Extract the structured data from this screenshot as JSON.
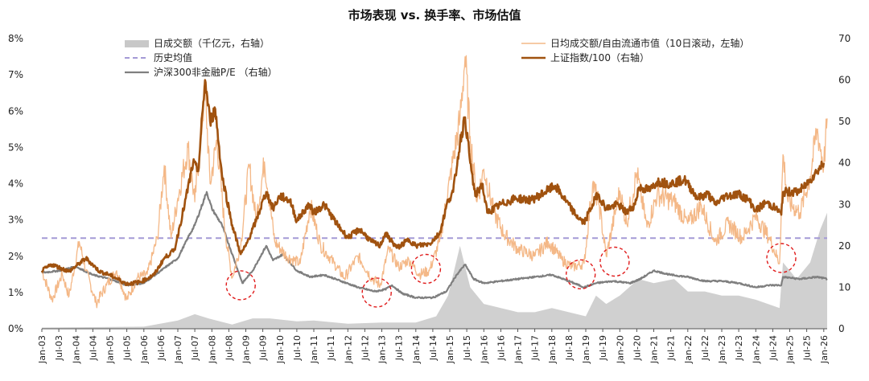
{
  "chart_data": {
    "type": "line",
    "title": "市场表现 vs. 换手率、市场估值",
    "left_axis": {
      "ylim": [
        0,
        8
      ],
      "ticks": [
        "0%",
        "1%",
        "2%",
        "3%",
        "4%",
        "5%",
        "6%",
        "7%",
        "8%"
      ]
    },
    "right_axis": {
      "ylim": [
        0,
        70
      ],
      "ticks": [
        "0",
        "10",
        "20",
        "30",
        "40",
        "50",
        "60",
        "70"
      ]
    },
    "x_ticks": [
      "Jan-03",
      "Jul-03",
      "Jan-04",
      "Jul-04",
      "Jan-05",
      "Jul-05",
      "Jan-06",
      "Jul-06",
      "Jan-07",
      "Jul-07",
      "Jan-08",
      "Jul-08",
      "Jan-09",
      "Jul-09",
      "Jan-10",
      "Jul-10",
      "Jan-11",
      "Jul-11",
      "Jan-12",
      "Jul-12",
      "Jan-13",
      "Jul-13",
      "Jan-14",
      "Jul-14",
      "Jan-15",
      "Jul-15",
      "Jan-16",
      "Jul-16",
      "Jan-17",
      "Jul-17",
      "Jan-18",
      "Jul-18",
      "Jan-19",
      "Jul-19",
      "Jan-20",
      "Jul-20",
      "Jan-21",
      "Jul-21",
      "Jan-22",
      "Jul-22",
      "Jan-23",
      "Jul-23",
      "Jan-24",
      "Jul-24",
      "Jan-25",
      "Jul-25",
      "Jan-26"
    ],
    "legend": [
      {
        "key": "volume",
        "label": "日成交额（千亿元，右轴）",
        "color": "#c8c8c8",
        "style": "area"
      },
      {
        "key": "mean",
        "label": "历史均值",
        "color": "#a49ad6",
        "style": "dashed"
      },
      {
        "key": "pe",
        "label": "沪深300非金融P/E （右轴）",
        "color": "#7f7f7f",
        "style": "line"
      },
      {
        "key": "turnover",
        "label": "日均成交额/自由流通市值（10日滚动，左轴）",
        "color": "#f4b887",
        "style": "line"
      },
      {
        "key": "sh",
        "label": "上证指数/100（右轴）",
        "color": "#a0520f",
        "style": "line"
      }
    ],
    "historical_mean_pct": 2.5,
    "series": [
      {
        "key": "sh",
        "axis": "right",
        "points": [
          [
            2003.0,
            14
          ],
          [
            2003.3,
            15.5
          ],
          [
            2003.8,
            13.8
          ],
          [
            2004.3,
            17
          ],
          [
            2004.7,
            13.8
          ],
          [
            2005.0,
            13
          ],
          [
            2005.5,
            10.8
          ],
          [
            2005.9,
            11.3
          ],
          [
            2006.3,
            13
          ],
          [
            2006.6,
            17
          ],
          [
            2006.9,
            19
          ],
          [
            2007.2,
            30
          ],
          [
            2007.45,
            40
          ],
          [
            2007.6,
            38
          ],
          [
            2007.8,
            60
          ],
          [
            2007.95,
            50
          ],
          [
            2008.1,
            53
          ],
          [
            2008.3,
            37
          ],
          [
            2008.6,
            25
          ],
          [
            2008.85,
            18
          ],
          [
            2009.0,
            20
          ],
          [
            2009.3,
            26
          ],
          [
            2009.6,
            33
          ],
          [
            2009.8,
            29
          ],
          [
            2010.0,
            32
          ],
          [
            2010.3,
            31
          ],
          [
            2010.5,
            26
          ],
          [
            2010.85,
            30
          ],
          [
            2011.0,
            28
          ],
          [
            2011.3,
            30
          ],
          [
            2011.7,
            25
          ],
          [
            2012.0,
            22
          ],
          [
            2012.35,
            24
          ],
          [
            2012.7,
            21
          ],
          [
            2012.95,
            20
          ],
          [
            2013.1,
            23
          ],
          [
            2013.45,
            19.5
          ],
          [
            2013.8,
            21.5
          ],
          [
            2014.0,
            20
          ],
          [
            2014.4,
            20.5
          ],
          [
            2014.7,
            23
          ],
          [
            2014.95,
            31
          ],
          [
            2015.1,
            33
          ],
          [
            2015.3,
            45
          ],
          [
            2015.45,
            51
          ],
          [
            2015.6,
            40
          ],
          [
            2015.75,
            32
          ],
          [
            2015.95,
            35
          ],
          [
            2016.1,
            28
          ],
          [
            2016.5,
            30
          ],
          [
            2016.95,
            31.5
          ],
          [
            2017.4,
            31
          ],
          [
            2017.9,
            33.5
          ],
          [
            2018.1,
            34.5
          ],
          [
            2018.4,
            31
          ],
          [
            2018.7,
            27.5
          ],
          [
            2018.95,
            25.5
          ],
          [
            2019.2,
            30
          ],
          [
            2019.35,
            32.5
          ],
          [
            2019.6,
            29
          ],
          [
            2019.95,
            30
          ],
          [
            2020.2,
            28
          ],
          [
            2020.45,
            30
          ],
          [
            2020.55,
            34
          ],
          [
            2020.9,
            33.5
          ],
          [
            2021.1,
            35.5
          ],
          [
            2021.5,
            35
          ],
          [
            2021.9,
            36
          ],
          [
            2022.3,
            31.5
          ],
          [
            2022.6,
            32.5
          ],
          [
            2022.8,
            30
          ],
          [
            2023.1,
            32
          ],
          [
            2023.5,
            32.5
          ],
          [
            2023.8,
            31
          ],
          [
            2024.0,
            28.5
          ],
          [
            2024.3,
            30.5
          ],
          [
            2024.6,
            29
          ],
          [
            2024.75,
            27.5
          ],
          [
            2024.8,
            33
          ],
          [
            2025.2,
            33
          ],
          [
            2025.4,
            34
          ],
          [
            2025.6,
            36
          ],
          [
            2025.8,
            38
          ],
          [
            2026.0,
            40
          ]
        ]
      },
      {
        "key": "pe",
        "axis": "right",
        "points": [
          [
            2003.0,
            13.5
          ],
          [
            2003.5,
            14
          ],
          [
            2004.0,
            15
          ],
          [
            2004.5,
            13
          ],
          [
            2005.0,
            12
          ],
          [
            2005.5,
            10.5
          ],
          [
            2006.0,
            11
          ],
          [
            2006.5,
            14
          ],
          [
            2007.0,
            17
          ],
          [
            2007.3,
            22
          ],
          [
            2007.5,
            25
          ],
          [
            2007.85,
            33
          ],
          [
            2008.0,
            29
          ],
          [
            2008.3,
            25
          ],
          [
            2008.6,
            18
          ],
          [
            2008.9,
            11
          ],
          [
            2009.2,
            14
          ],
          [
            2009.6,
            20
          ],
          [
            2009.8,
            16.5
          ],
          [
            2010.1,
            18
          ],
          [
            2010.5,
            14
          ],
          [
            2010.9,
            12.5
          ],
          [
            2011.3,
            13
          ],
          [
            2011.8,
            11.5
          ],
          [
            2012.3,
            10
          ],
          [
            2012.8,
            9
          ],
          [
            2013.1,
            9.5
          ],
          [
            2013.3,
            10.5
          ],
          [
            2013.6,
            8.5
          ],
          [
            2014.0,
            7.5
          ],
          [
            2014.5,
            7.5
          ],
          [
            2014.9,
            9
          ],
          [
            2015.2,
            13
          ],
          [
            2015.45,
            15.5
          ],
          [
            2015.7,
            12
          ],
          [
            2016.0,
            11
          ],
          [
            2016.5,
            11.5
          ],
          [
            2017.0,
            12
          ],
          [
            2017.5,
            12.5
          ],
          [
            2018.0,
            13
          ],
          [
            2018.5,
            11.5
          ],
          [
            2018.95,
            10
          ],
          [
            2019.3,
            11
          ],
          [
            2019.8,
            11.5
          ],
          [
            2020.3,
            11
          ],
          [
            2020.6,
            12
          ],
          [
            2021.0,
            14
          ],
          [
            2021.5,
            13
          ],
          [
            2022.0,
            12.5
          ],
          [
            2022.5,
            11.5
          ],
          [
            2023.0,
            11.5
          ],
          [
            2023.5,
            11
          ],
          [
            2024.0,
            10
          ],
          [
            2024.4,
            10.5
          ],
          [
            2024.75,
            10.5
          ],
          [
            2024.8,
            12.5
          ],
          [
            2025.3,
            12
          ],
          [
            2025.8,
            12.5
          ],
          [
            2026.1,
            12
          ]
        ]
      },
      {
        "key": "turnover",
        "axis": "left",
        "points": [
          [
            2003.0,
            1.6
          ],
          [
            2003.3,
            0.8
          ],
          [
            2003.6,
            1.5
          ],
          [
            2003.8,
            0.9
          ],
          [
            2004.1,
            2.4
          ],
          [
            2004.3,
            1.6
          ],
          [
            2004.6,
            0.7
          ],
          [
            2004.9,
            1.2
          ],
          [
            2005.2,
            1.6
          ],
          [
            2005.5,
            0.8
          ],
          [
            2005.8,
            1.4
          ],
          [
            2006.1,
            1.5
          ],
          [
            2006.4,
            2.5
          ],
          [
            2006.6,
            4.5
          ],
          [
            2006.8,
            2.5
          ],
          [
            2007.0,
            3.6
          ],
          [
            2007.3,
            5
          ],
          [
            2007.5,
            3.5
          ],
          [
            2007.8,
            6.6
          ],
          [
            2007.95,
            4
          ],
          [
            2008.15,
            5.2
          ],
          [
            2008.4,
            2.6
          ],
          [
            2008.6,
            1.4
          ],
          [
            2008.85,
            2.3
          ],
          [
            2009.1,
            4.5
          ],
          [
            2009.3,
            3
          ],
          [
            2009.55,
            4.6
          ],
          [
            2009.85,
            2.4
          ],
          [
            2010.2,
            2
          ],
          [
            2010.6,
            1.8
          ],
          [
            2010.9,
            3.4
          ],
          [
            2011.2,
            2.3
          ],
          [
            2011.6,
            1.8
          ],
          [
            2011.9,
            1.4
          ],
          [
            2012.3,
            2
          ],
          [
            2012.7,
            1.4
          ],
          [
            2012.95,
            1.2
          ],
          [
            2013.2,
            2.2
          ],
          [
            2013.5,
            1.7
          ],
          [
            2013.8,
            1.9
          ],
          [
            2014.1,
            1.5
          ],
          [
            2014.4,
            1.6
          ],
          [
            2014.7,
            2.4
          ],
          [
            2015.0,
            4.1
          ],
          [
            2015.3,
            5.8
          ],
          [
            2015.45,
            7.5
          ],
          [
            2015.6,
            5.3
          ],
          [
            2015.8,
            3.5
          ],
          [
            2016.0,
            4.4
          ],
          [
            2016.3,
            3.2
          ],
          [
            2016.6,
            2.6
          ],
          [
            2017.0,
            2.2
          ],
          [
            2017.5,
            2
          ],
          [
            2017.9,
            2.4
          ],
          [
            2018.3,
            1.9
          ],
          [
            2018.6,
            1.7
          ],
          [
            2018.95,
            1.8
          ],
          [
            2019.2,
            4
          ],
          [
            2019.4,
            3.4
          ],
          [
            2019.6,
            2
          ],
          [
            2020.0,
            3.8
          ],
          [
            2020.2,
            2.9
          ],
          [
            2020.5,
            4.3
          ],
          [
            2020.8,
            2.8
          ],
          [
            2021.1,
            3.7
          ],
          [
            2021.6,
            3.5
          ],
          [
            2022.0,
            2.9
          ],
          [
            2022.4,
            3.4
          ],
          [
            2022.8,
            2.4
          ],
          [
            2023.2,
            2.9
          ],
          [
            2023.6,
            2.5
          ],
          [
            2024.0,
            3.1
          ],
          [
            2024.4,
            2.5
          ],
          [
            2024.7,
            1.8
          ],
          [
            2024.8,
            4.8
          ],
          [
            2024.95,
            3.5
          ],
          [
            2025.3,
            3.2
          ],
          [
            2025.6,
            4.2
          ],
          [
            2025.8,
            5.5
          ],
          [
            2026.0,
            4.5
          ],
          [
            2026.1,
            5.8
          ]
        ]
      },
      {
        "key": "volume",
        "axis": "right",
        "points": [
          [
            2003.0,
            0.3
          ],
          [
            2006.0,
            0.5
          ],
          [
            2007.0,
            2
          ],
          [
            2007.5,
            3.5
          ],
          [
            2007.9,
            2.5
          ],
          [
            2008.6,
            1
          ],
          [
            2009.2,
            2.5
          ],
          [
            2009.7,
            2.5
          ],
          [
            2010.5,
            1.8
          ],
          [
            2011.0,
            2
          ],
          [
            2012.0,
            1.2
          ],
          [
            2013.0,
            1.5
          ],
          [
            2014.0,
            1.5
          ],
          [
            2014.6,
            3
          ],
          [
            2014.95,
            8
          ],
          [
            2015.3,
            20
          ],
          [
            2015.45,
            15
          ],
          [
            2015.6,
            10
          ],
          [
            2016.0,
            6
          ],
          [
            2016.5,
            5
          ],
          [
            2017.0,
            4
          ],
          [
            2017.5,
            4
          ],
          [
            2018.0,
            5
          ],
          [
            2018.5,
            4
          ],
          [
            2019.0,
            3
          ],
          [
            2019.3,
            8
          ],
          [
            2019.6,
            6
          ],
          [
            2020.0,
            8
          ],
          [
            2020.55,
            12
          ],
          [
            2021.0,
            11
          ],
          [
            2021.6,
            12
          ],
          [
            2022.0,
            9
          ],
          [
            2022.5,
            9
          ],
          [
            2023.0,
            8
          ],
          [
            2023.5,
            8
          ],
          [
            2024.0,
            7
          ],
          [
            2024.7,
            5
          ],
          [
            2024.8,
            16
          ],
          [
            2025.2,
            12
          ],
          [
            2025.6,
            16
          ],
          [
            2025.9,
            24
          ],
          [
            2026.1,
            28
          ]
        ]
      }
    ]
  }
}
